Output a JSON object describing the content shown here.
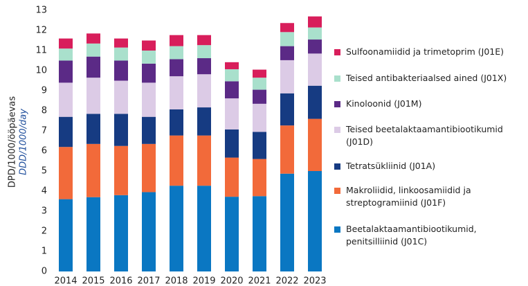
{
  "chart_data": {
    "type": "stacked_bar",
    "y_label": "DPD/1000/ööpäevas",
    "y_label_en": "DDD/1000/day",
    "categories": [
      "2014",
      "2015",
      "2016",
      "2017",
      "2018",
      "2019",
      "2020",
      "2021",
      "2022",
      "2023"
    ],
    "series": [
      {
        "name": "Beetalaktaamantibiootikumid, penitsilliinid (J01C)",
        "color": "#0a77c2",
        "values": [
          3.6,
          3.7,
          3.8,
          3.95,
          4.27,
          4.27,
          3.72,
          3.75,
          4.87,
          5.0
        ]
      },
      {
        "name": "Makroliidid, linkoosamiidid ja streptogramiinid (J01F)",
        "color": "#f26a3a",
        "values": [
          2.6,
          2.65,
          2.45,
          2.4,
          2.5,
          2.5,
          1.95,
          1.85,
          2.4,
          2.6
        ]
      },
      {
        "name": "Tetratsükliinid (J01A)",
        "color": "#163b82",
        "values": [
          1.5,
          1.5,
          1.6,
          1.35,
          1.3,
          1.4,
          1.4,
          1.35,
          1.6,
          1.65
        ]
      },
      {
        "name": "Teised beetalaktaamantibiootikumid (J01D)",
        "color": "#dccbe6",
        "values": [
          1.7,
          1.8,
          1.65,
          1.7,
          1.65,
          1.65,
          1.55,
          1.4,
          1.65,
          1.6
        ]
      },
      {
        "name": "Kinoloonid (J01M)",
        "color": "#5b2a86",
        "values": [
          1.1,
          1.05,
          1.0,
          0.95,
          0.85,
          0.8,
          0.85,
          0.7,
          0.7,
          0.7
        ]
      },
      {
        "name": "Teised antibakteriaalsed ained (J01X)",
        "color": "#a9e0cc",
        "values": [
          0.6,
          0.65,
          0.65,
          0.65,
          0.65,
          0.65,
          0.6,
          0.6,
          0.7,
          0.6
        ]
      },
      {
        "name": "Sulfoonamiidid ja trimetoprim (J01E)",
        "color": "#d81e5b",
        "values": [
          0.5,
          0.5,
          0.45,
          0.5,
          0.55,
          0.5,
          0.35,
          0.4,
          0.45,
          0.55
        ]
      }
    ],
    "ylim": [
      0,
      13
    ],
    "yticks": [
      0,
      1,
      2,
      3,
      4,
      5,
      6,
      7,
      8,
      9,
      10,
      11,
      12,
      13
    ],
    "grid": false
  }
}
